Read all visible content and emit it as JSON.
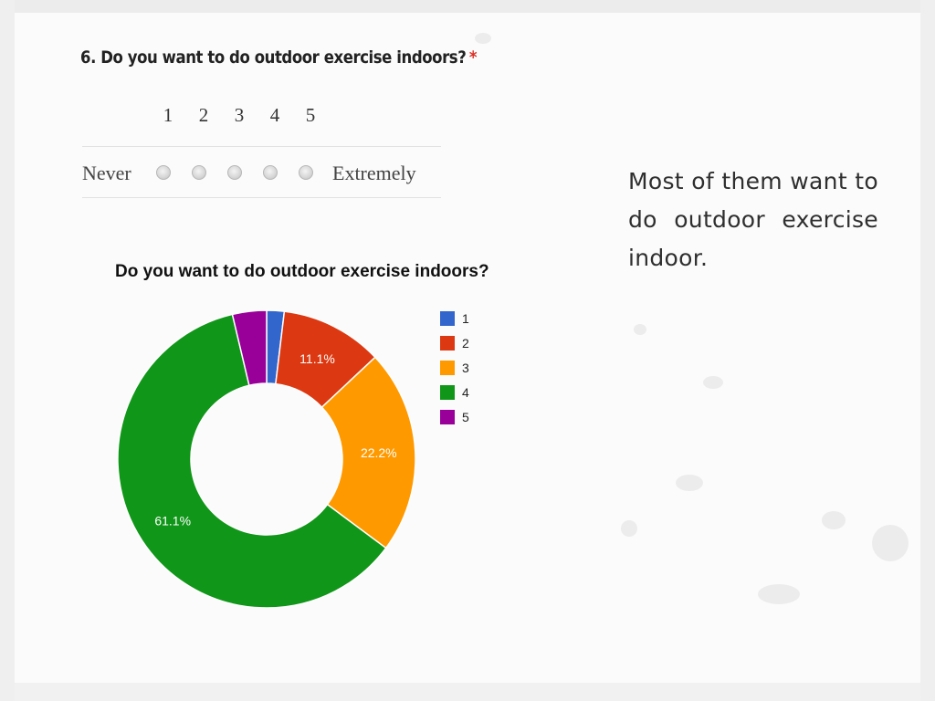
{
  "question": {
    "title": "6. Do you want to do outdoor exercise indoors?",
    "required_mark": "*",
    "scale_numbers": [
      "1",
      "2",
      "3",
      "4",
      "5"
    ],
    "low_label": "Never",
    "high_label": "Extremely"
  },
  "comment": "Most of them want to do outdoor exercise indoor.",
  "chart_data": {
    "type": "pie",
    "style": "donut",
    "title": "Do you want to do outdoor exercise indoors?",
    "categories": [
      "1",
      "2",
      "3",
      "4",
      "5"
    ],
    "values": [
      1.9,
      11.1,
      22.2,
      61.1,
      3.7
    ],
    "value_labels": [
      "",
      "11.1%",
      "22.2%",
      "61.1%",
      ""
    ],
    "colors": [
      "#3366cc",
      "#dc3912",
      "#ff9900",
      "#109618",
      "#990099"
    ],
    "legend_position": "right"
  }
}
